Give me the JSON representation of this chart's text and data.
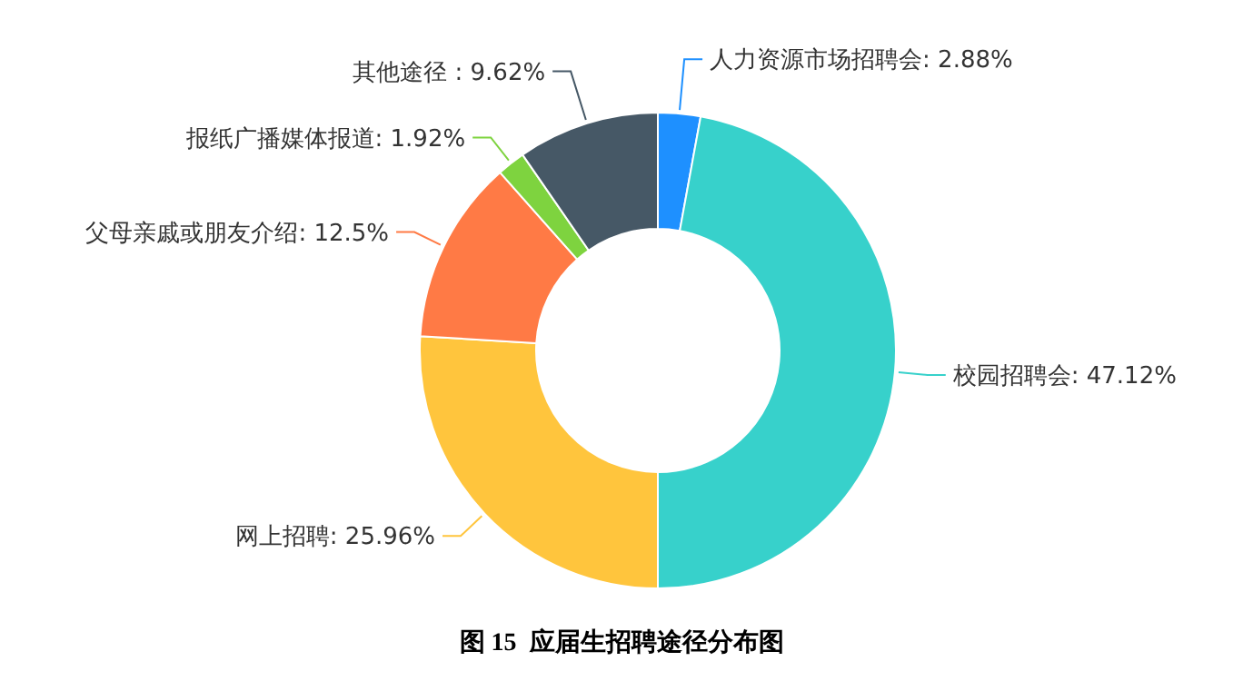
{
  "chart_data": {
    "type": "donut",
    "title": "图 15  应届生招聘途径分布图",
    "categories": [
      "人力资源市场招聘会",
      "校园招聘会",
      "网上招聘",
      "父母亲戚或朋友介绍",
      "报纸广播媒体报道",
      "其他途径 "
    ],
    "values": [
      2.88,
      47.12,
      25.96,
      12.5,
      1.92,
      9.62
    ],
    "colors": [
      "#1e90ff",
      "#37d1cb",
      "#ffc53d",
      "#ff7a45",
      "#7ed33f",
      "#465866"
    ],
    "value_labels": [
      ": 2.88%",
      ": 47.12%",
      ": 25.96%",
      ": 12.5%",
      ": 1.92%",
      ": 9.62%"
    ]
  }
}
